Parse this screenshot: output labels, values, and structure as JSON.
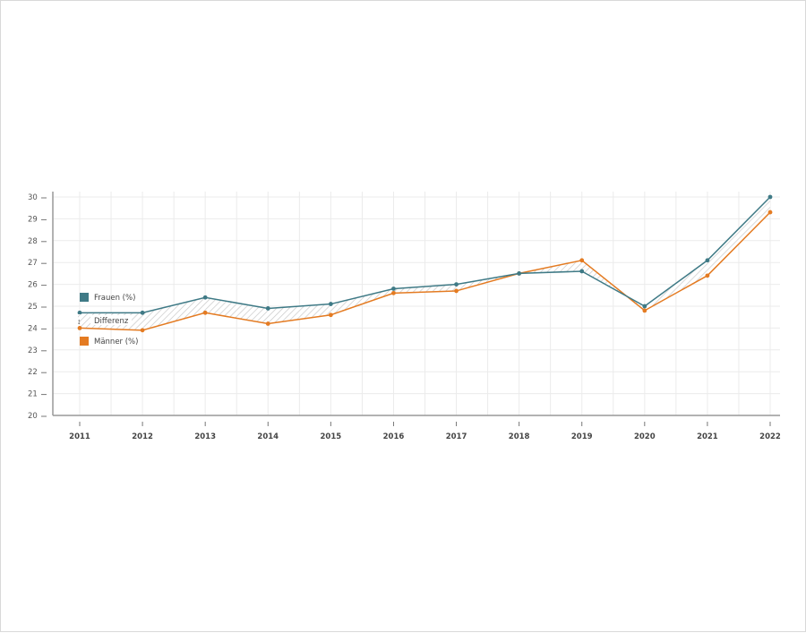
{
  "chart_data": {
    "type": "line",
    "title": "",
    "xlabel": "",
    "ylabel": "",
    "x": [
      "2011",
      "2012",
      "2013",
      "2014",
      "2015",
      "2016",
      "2017",
      "2018",
      "2019",
      "2020",
      "2021",
      "2022"
    ],
    "series": [
      {
        "name": "Frauen (%)",
        "color": "#3f7a86",
        "values": [
          24.7,
          24.7,
          25.4,
          24.9,
          25.1,
          25.8,
          26.0,
          26.5,
          26.6,
          25.0,
          27.1,
          30.0
        ]
      },
      {
        "name": "Männer (%)",
        "color": "#e47b22",
        "values": [
          24.0,
          23.9,
          24.7,
          24.2,
          24.6,
          25.6,
          25.7,
          26.5,
          27.1,
          24.8,
          26.4,
          29.3
        ]
      }
    ],
    "difference_area": {
      "label": "Differenz",
      "pattern": "diagonal-hatch",
      "color": "#c8c8c8"
    },
    "ylim": [
      20,
      30
    ],
    "yticks": [
      20,
      21,
      22,
      23,
      24,
      25,
      26,
      27,
      28,
      29,
      30
    ],
    "grid": true,
    "legend_position": "inside-left"
  },
  "legend": {
    "frauen": "Frauen (%)",
    "differenz": "Differenz",
    "maenner": "Männer (%)"
  },
  "colors": {
    "frauen": "#3f7a86",
    "maenner": "#e47b22",
    "grid": "#ebebeb",
    "axis": "#999999"
  }
}
